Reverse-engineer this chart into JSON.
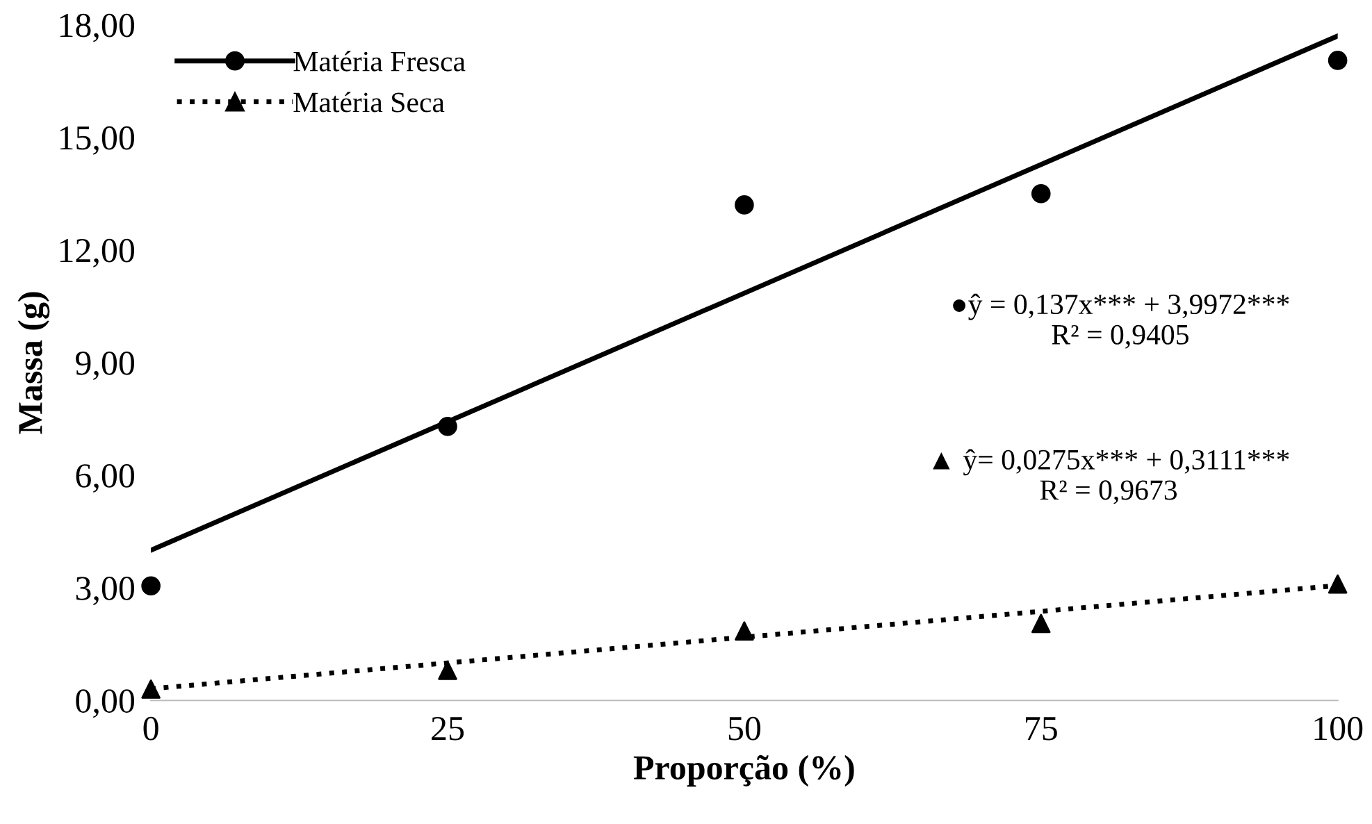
{
  "chart_data": {
    "type": "scatter",
    "xlabel": "Proporção (%)",
    "ylabel": "Massa (g)",
    "xlim": [
      0,
      100
    ],
    "xticks": [
      0,
      25,
      50,
      75,
      100
    ],
    "ylim": [
      0,
      18
    ],
    "yticks": [
      {
        "value": 0,
        "label": "0,00"
      },
      {
        "value": 3,
        "label": "3,00"
      },
      {
        "value": 6,
        "label": "6,00"
      },
      {
        "value": 9,
        "label": "9,00"
      },
      {
        "value": 12,
        "label": "12,00"
      },
      {
        "value": 15,
        "label": "15,00"
      },
      {
        "value": 18,
        "label": "18,00"
      }
    ],
    "grid": false,
    "legend": "top left",
    "series": [
      {
        "name": "Matéria Fresca",
        "marker": "circle",
        "color": "#000000",
        "x": [
          0,
          25,
          50,
          75,
          100
        ],
        "values": [
          3.05,
          7.3,
          13.2,
          13.5,
          17.05
        ]
      },
      {
        "type": "line",
        "marker": "none",
        "line_style": "solid",
        "color": "#000000",
        "x": [
          0,
          100
        ],
        "values": [
          4.0,
          17.7
        ]
      },
      {
        "name": "Matéria Seca",
        "marker": "triangle",
        "color": "#000000",
        "x": [
          0,
          25,
          50,
          75,
          100
        ],
        "values": [
          0.3,
          0.8,
          1.85,
          2.05,
          3.1
        ]
      },
      {
        "type": "line",
        "marker": "none",
        "line_style": "dotted",
        "color": "#000000",
        "x": [
          0,
          100
        ],
        "values": [
          0.31,
          3.06
        ]
      }
    ],
    "annotations": [
      "●ŷ = 0,137x*** + 3,9972***\nR² = 0,9405",
      "▲ ŷ= 0,0275x*** + 0,3111***\nR² = 0,9673"
    ]
  }
}
